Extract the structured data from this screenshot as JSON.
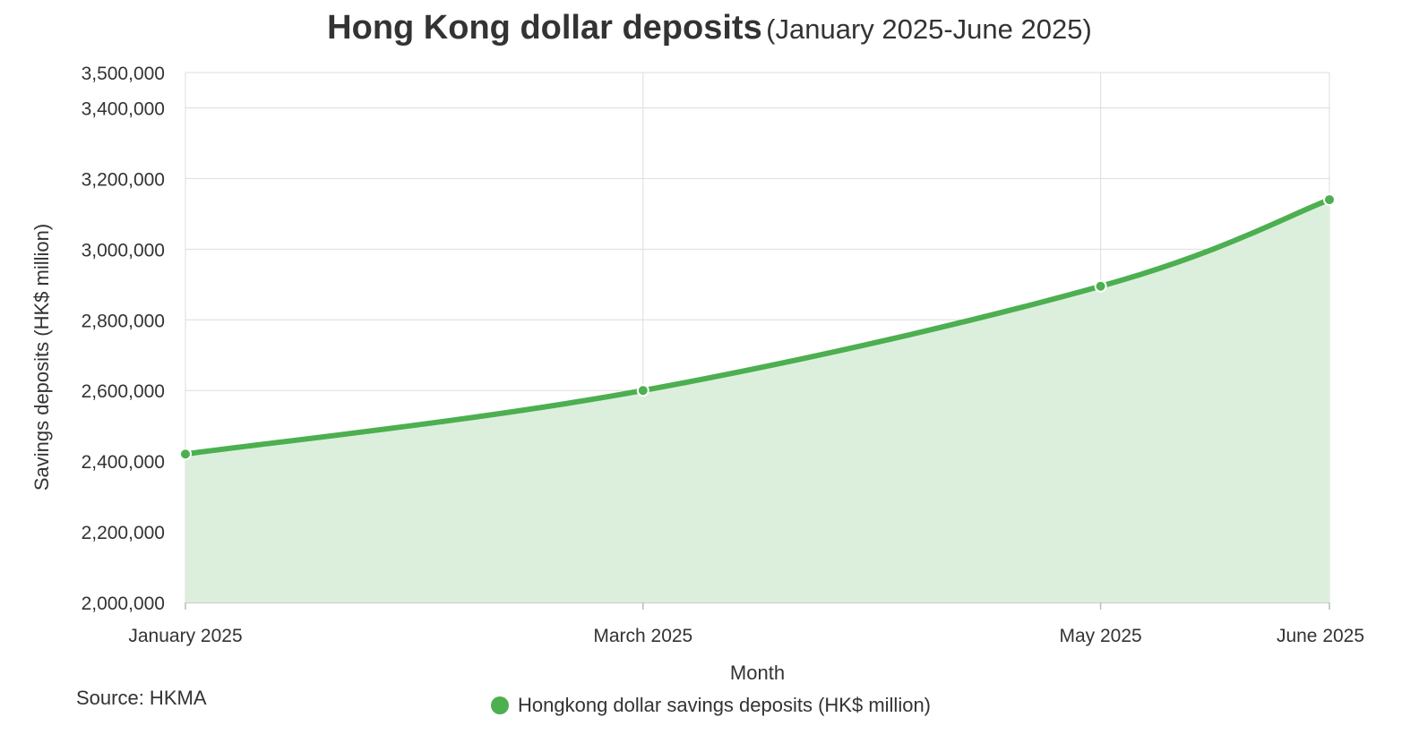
{
  "title": {
    "main": "Hong Kong dollar deposits",
    "sub": "(January 2025-June 2025)"
  },
  "source": "Source: HKMA",
  "colors": {
    "line": "#4caf50",
    "area": "#dcefdc",
    "grid": "#dddddd"
  },
  "chart_data": {
    "type": "area",
    "title": "Hong Kong dollar deposits (January 2025-June 2025)",
    "xlabel": "Month",
    "ylabel": "Savings deposits (HK$ million)",
    "x": [
      "January 2025",
      "March 2025",
      "May 2025",
      "June 2025"
    ],
    "x_positions": [
      1,
      3,
      5,
      6
    ],
    "series": [
      {
        "name": "Hongkong dollar savings deposits (HK$ million)",
        "values": [
          2420000,
          2600000,
          2895000,
          3140000
        ]
      }
    ],
    "ylim": [
      2000000,
      3500000
    ],
    "yticks": [
      2000000,
      2200000,
      2400000,
      2600000,
      2800000,
      3000000,
      3200000,
      3400000,
      3500000
    ],
    "ytick_labels": [
      "2,000,000",
      "2,200,000",
      "2,400,000",
      "2,600,000",
      "2,800,000",
      "3,000,000",
      "3,200,000",
      "3,400,000",
      "3,500,000"
    ],
    "grid": true,
    "legend": "bottom-center"
  }
}
